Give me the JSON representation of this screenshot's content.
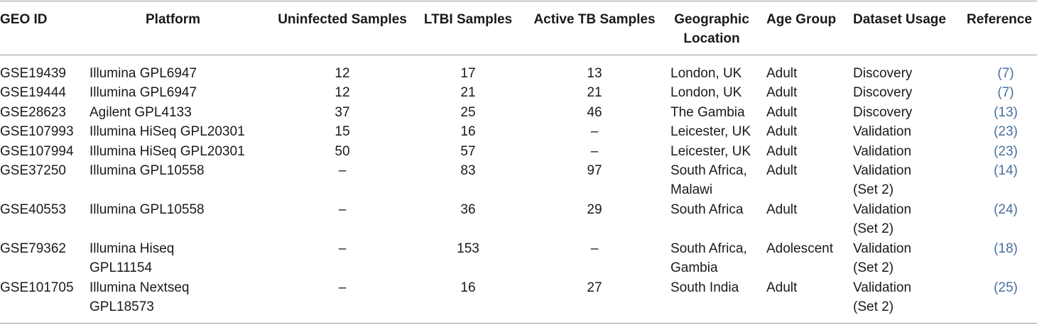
{
  "table": {
    "headers": [
      [
        "GEO ID"
      ],
      [
        "Platform"
      ],
      [
        "Uninfected Samples"
      ],
      [
        "LTBI Samples"
      ],
      [
        "Active TB Samples"
      ],
      [
        "Geographic",
        "Location"
      ],
      [
        "Age Group"
      ],
      [
        "Dataset Usage"
      ],
      [
        "Reference"
      ]
    ],
    "rows": [
      {
        "geo_id": "GSE19439",
        "platform": [
          "Illumina GPL6947"
        ],
        "uninfected": "12",
        "ltbi": "17",
        "active_tb": "13",
        "location": [
          "London, UK"
        ],
        "age_group": "Adult",
        "usage": [
          "Discovery"
        ],
        "reference": "(7)"
      },
      {
        "geo_id": "GSE19444",
        "platform": [
          "Illumina GPL6947"
        ],
        "uninfected": "12",
        "ltbi": "21",
        "active_tb": "21",
        "location": [
          "London, UK"
        ],
        "age_group": "Adult",
        "usage": [
          "Discovery"
        ],
        "reference": "(7)"
      },
      {
        "geo_id": "GSE28623",
        "platform": [
          "Agilent GPL4133"
        ],
        "uninfected": "37",
        "ltbi": "25",
        "active_tb": "46",
        "location": [
          "The Gambia"
        ],
        "age_group": "Adult",
        "usage": [
          "Discovery"
        ],
        "reference": "(13)"
      },
      {
        "geo_id": "GSE107993",
        "platform": [
          "Illumina HiSeq GPL20301"
        ],
        "uninfected": "15",
        "ltbi": "16",
        "active_tb": "–",
        "location": [
          "Leicester, UK"
        ],
        "age_group": "Adult",
        "usage": [
          "Validation"
        ],
        "reference": "(23)"
      },
      {
        "geo_id": "GSE107994",
        "platform": [
          "Illumina HiSeq GPL20301"
        ],
        "uninfected": "50",
        "ltbi": "57",
        "active_tb": "–",
        "location": [
          "Leicester, UK"
        ],
        "age_group": "Adult",
        "usage": [
          "Validation"
        ],
        "reference": "(23)"
      },
      {
        "geo_id": "GSE37250",
        "platform": [
          "Illumina GPL10558"
        ],
        "uninfected": "–",
        "ltbi": "83",
        "active_tb": "97",
        "location": [
          "South Africa,",
          "Malawi"
        ],
        "age_group": "Adult",
        "usage": [
          "Validation",
          "(Set 2)"
        ],
        "reference": "(14)"
      },
      {
        "geo_id": "GSE40553",
        "platform": [
          "Illumina GPL10558"
        ],
        "uninfected": "–",
        "ltbi": "36",
        "active_tb": "29",
        "location": [
          "South Africa"
        ],
        "age_group": "Adult",
        "usage": [
          "Validation",
          "(Set 2)"
        ],
        "reference": "(24)"
      },
      {
        "geo_id": "GSE79362",
        "platform": [
          "Illumina Hiseq",
          "GPL11154"
        ],
        "uninfected": "–",
        "ltbi": "153",
        "active_tb": "–",
        "location": [
          "South Africa,",
          "Gambia"
        ],
        "age_group": "Adolescent",
        "usage": [
          "Validation",
          "(Set 2)"
        ],
        "reference": "(18)"
      },
      {
        "geo_id": "GSE101705",
        "platform": [
          "Illumina Nextseq",
          "GPL18573"
        ],
        "uninfected": "–",
        "ltbi": "16",
        "active_tb": "27",
        "location": [
          "South India"
        ],
        "age_group": "Adult",
        "usage": [
          "Validation",
          "(Set 2)"
        ],
        "reference": "(25)"
      }
    ]
  },
  "colors": {
    "rule": "#9a9a9a",
    "reference_link": "#4a6f9e",
    "text": "#1a1a1a"
  }
}
